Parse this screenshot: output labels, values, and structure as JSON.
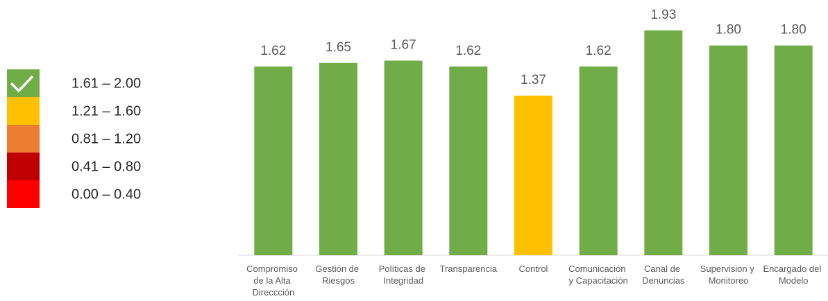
{
  "chart_data": {
    "type": "bar",
    "categories": [
      "Compromiso de la Alta Direccción",
      "Gestión de Riesgos",
      "Políticas de Integridad",
      "Transparencia",
      "Control",
      "Comunicación y Capacitación",
      "Canal de Denuncias",
      "Supervision y Monitoreo",
      "Encargado del Modelo"
    ],
    "values": [
      1.62,
      1.65,
      1.67,
      1.62,
      1.37,
      1.62,
      1.93,
      1.8,
      1.8
    ],
    "value_labels": [
      "1.62",
      "1.65",
      "1.67",
      "1.62",
      "1.37",
      "1.62",
      "1.93",
      "1.80",
      "1.80"
    ],
    "colors": [
      "#70ad47",
      "#70ad47",
      "#70ad47",
      "#70ad47",
      "#ffc000",
      "#70ad47",
      "#70ad47",
      "#70ad47",
      "#70ad47"
    ],
    "ylim": [
      0,
      2
    ],
    "legend": [
      {
        "label": "1.61 – 2.00",
        "color": "#70ad47"
      },
      {
        "label": "1.21 – 1.60",
        "color": "#ffc000"
      },
      {
        "label": "0.81 – 1.20",
        "color": "#ed7d31"
      },
      {
        "label": "0.41 – 0.80",
        "color": "#c00000"
      },
      {
        "label": "0.00 – 0.40",
        "color": "#ff0000"
      }
    ]
  }
}
